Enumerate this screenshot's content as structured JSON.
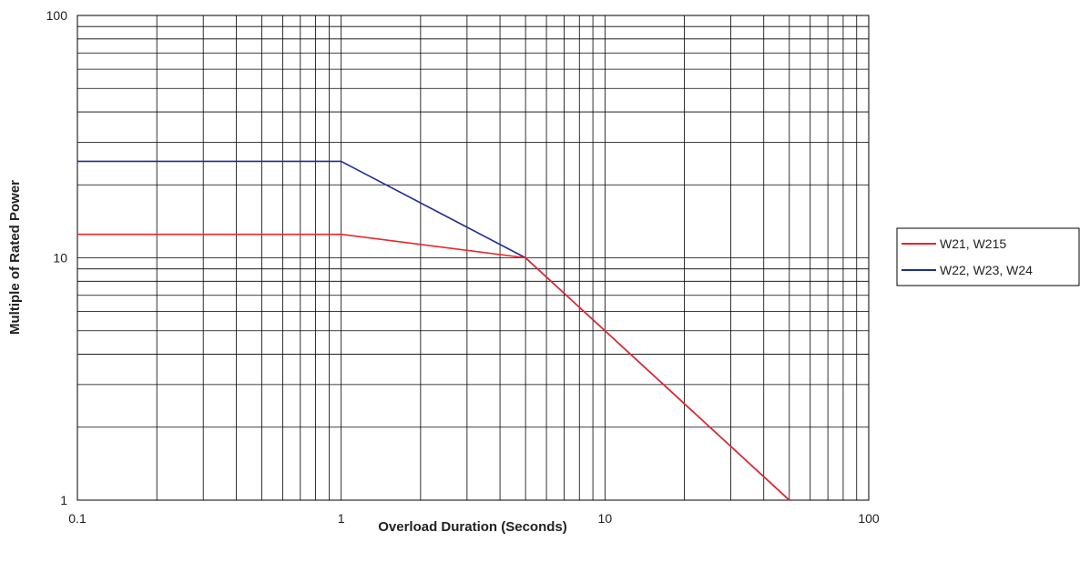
{
  "chart_data": {
    "type": "line",
    "title": "",
    "xlabel": "Overload Duration (Seconds)",
    "ylabel": "Multiple of Rated Power",
    "xscale": "log",
    "yscale": "log",
    "xlim": [
      0.1,
      100
    ],
    "ylim": [
      1,
      100
    ],
    "x_ticks": [
      "0.1",
      "1",
      "10",
      "100"
    ],
    "y_ticks": [
      "1",
      "10",
      "100"
    ],
    "grid": true,
    "legend_position": "right",
    "series": [
      {
        "name": "W21, W215",
        "color": "#e8262a",
        "points": [
          [
            0.1,
            12.5
          ],
          [
            1,
            12.5
          ],
          [
            5,
            10
          ],
          [
            10,
            5
          ],
          [
            50,
            1
          ]
        ]
      },
      {
        "name": "W22, W23, W24",
        "color": "#1f2f8c",
        "points": [
          [
            0.1,
            25
          ],
          [
            1,
            25
          ],
          [
            5,
            10
          ],
          [
            10,
            5
          ],
          [
            50,
            1
          ]
        ]
      }
    ]
  }
}
